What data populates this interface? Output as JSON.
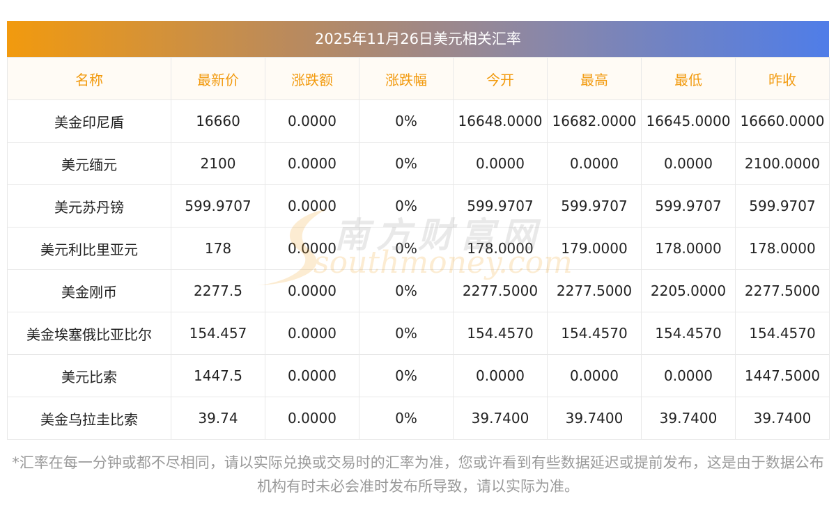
{
  "header": {
    "title": "2025年11月26日美元相关汇率"
  },
  "table": {
    "columns": [
      "名称",
      "最新价",
      "涨跌额",
      "涨跌幅",
      "今开",
      "最高",
      "最低",
      "昨收"
    ],
    "rows": [
      [
        "美金印尼盾",
        "16660",
        "0.0000",
        "0%",
        "16648.0000",
        "16682.0000",
        "16645.0000",
        "16660.0000"
      ],
      [
        "美元缅元",
        "2100",
        "0.0000",
        "0%",
        "0.0000",
        "0.0000",
        "0.0000",
        "2100.0000"
      ],
      [
        "美元苏丹镑",
        "599.9707",
        "0.0000",
        "0%",
        "599.9707",
        "599.9707",
        "599.9707",
        "599.9707"
      ],
      [
        "美元利比里亚元",
        "178",
        "0.0000",
        "0%",
        "178.0000",
        "179.0000",
        "178.0000",
        "178.0000"
      ],
      [
        "美金刚币",
        "2277.5",
        "0.0000",
        "0%",
        "2277.5000",
        "2277.5000",
        "2205.0000",
        "2277.5000"
      ],
      [
        "美金埃塞俄比亚比尔",
        "154.457",
        "0.0000",
        "0%",
        "154.4570",
        "154.4570",
        "154.4570",
        "154.4570"
      ],
      [
        "美元比索",
        "1447.5",
        "0.0000",
        "0%",
        "0.0000",
        "0.0000",
        "0.0000",
        "1447.5000"
      ],
      [
        "美金乌拉圭比索",
        "39.74",
        "0.0000",
        "0%",
        "39.7400",
        "39.7400",
        "39.7400",
        "39.7400"
      ]
    ]
  },
  "watermark": {
    "cn": "南方财富网",
    "en": "southmoney.com"
  },
  "footnote": {
    "text": "*汇率在每一分钟或都不尽相同，请以实际兑换或交易时的汇率为准，您或许看到有些数据延迟或提前发布，这是由于数据公布机构有时未必会准时发布所导致，请以实际为准。"
  },
  "colors": {
    "accent": "#f29a0e",
    "gradient_end": "#4f7de8",
    "header_bg": "#fffbf5",
    "border": "#e8e8e8",
    "footnote_text": "#9a9a9a"
  }
}
